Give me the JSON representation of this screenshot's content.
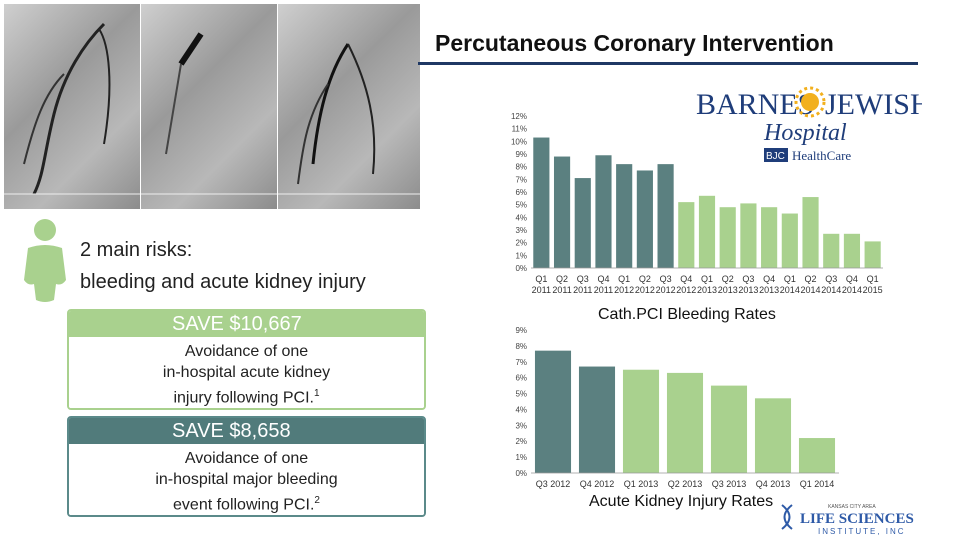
{
  "header": {
    "title": "Percutaneous Coronary Intervention"
  },
  "risks": {
    "line1": "2 main risks:",
    "line2": "bleeding and acute kidney injury"
  },
  "save_boxes": [
    {
      "heading": "SAVE $10,667",
      "line1": "Avoidance of one",
      "line2": "in-hospital acute kidney",
      "line3": "injury following PCI.",
      "sup": "1"
    },
    {
      "heading": "SAVE $8,658",
      "line1": "Avoidance of one",
      "line2": "in-hospital major bleeding",
      "line3": "event following PCI.",
      "sup": "2"
    }
  ],
  "logo": {
    "line1": "BARNES",
    "line2": "JEWISH",
    "line3": "Hospital",
    "line4": "BJC",
    "line5": "HealthCare"
  },
  "footer_logo": {
    "line1": "KANSAS CITY AREA",
    "line2": "LIFE SCIENCES",
    "line3": "INSTITUTE, INC"
  },
  "colors": {
    "dark_bar": "#5b8080",
    "light_bar": "#a9d18e",
    "title_rule": "#1f3864"
  },
  "chart_data": [
    {
      "type": "bar",
      "title": "Cath.PCI Bleeding Rates",
      "categories": [
        [
          "Q1",
          "2011"
        ],
        [
          "Q2",
          "2011"
        ],
        [
          "Q3",
          "2011"
        ],
        [
          "Q4",
          "2011"
        ],
        [
          "Q1",
          "2012"
        ],
        [
          "Q2",
          "2012"
        ],
        [
          "Q3",
          "2012"
        ],
        [
          "Q4",
          "2012"
        ],
        [
          "Q1",
          "2013"
        ],
        [
          "Q2",
          "2013"
        ],
        [
          "Q3",
          "2013"
        ],
        [
          "Q4",
          "2013"
        ],
        [
          "Q1",
          "2014"
        ],
        [
          "Q2",
          "2014"
        ],
        [
          "Q3",
          "2014"
        ],
        [
          "Q4",
          "2014"
        ],
        [
          "Q1",
          "2015"
        ]
      ],
      "values": [
        10.3,
        8.8,
        7.1,
        8.9,
        8.2,
        7.7,
        8.2,
        5.2,
        5.7,
        4.8,
        5.1,
        4.8,
        4.3,
        5.6,
        2.7,
        2.7,
        2.1
      ],
      "bar_colors": [
        "dark",
        "dark",
        "dark",
        "dark",
        "dark",
        "dark",
        "dark",
        "light",
        "light",
        "light",
        "light",
        "light",
        "light",
        "light",
        "light",
        "light",
        "light"
      ],
      "ylim": [
        0,
        12
      ],
      "yticks": [
        "0%",
        "1%",
        "2%",
        "3%",
        "4%",
        "5%",
        "6%",
        "7%",
        "8%",
        "9%",
        "10%",
        "11%",
        "12%"
      ]
    },
    {
      "type": "bar",
      "title": "Acute Kidney Injury Rates",
      "categories": [
        "Q3 2012",
        "Q4 2012",
        "Q1 2013",
        "Q2 2013",
        "Q3 2013",
        "Q4 2013",
        "Q1 2014"
      ],
      "values": [
        7.7,
        6.7,
        6.5,
        6.3,
        5.5,
        4.7,
        2.2
      ],
      "bar_colors": [
        "dark",
        "dark",
        "light",
        "light",
        "light",
        "light",
        "light"
      ],
      "ylim": [
        0,
        9
      ],
      "yticks": [
        "0%",
        "1%",
        "2%",
        "3%",
        "4%",
        "5%",
        "6%",
        "7%",
        "8%",
        "9%"
      ]
    }
  ]
}
